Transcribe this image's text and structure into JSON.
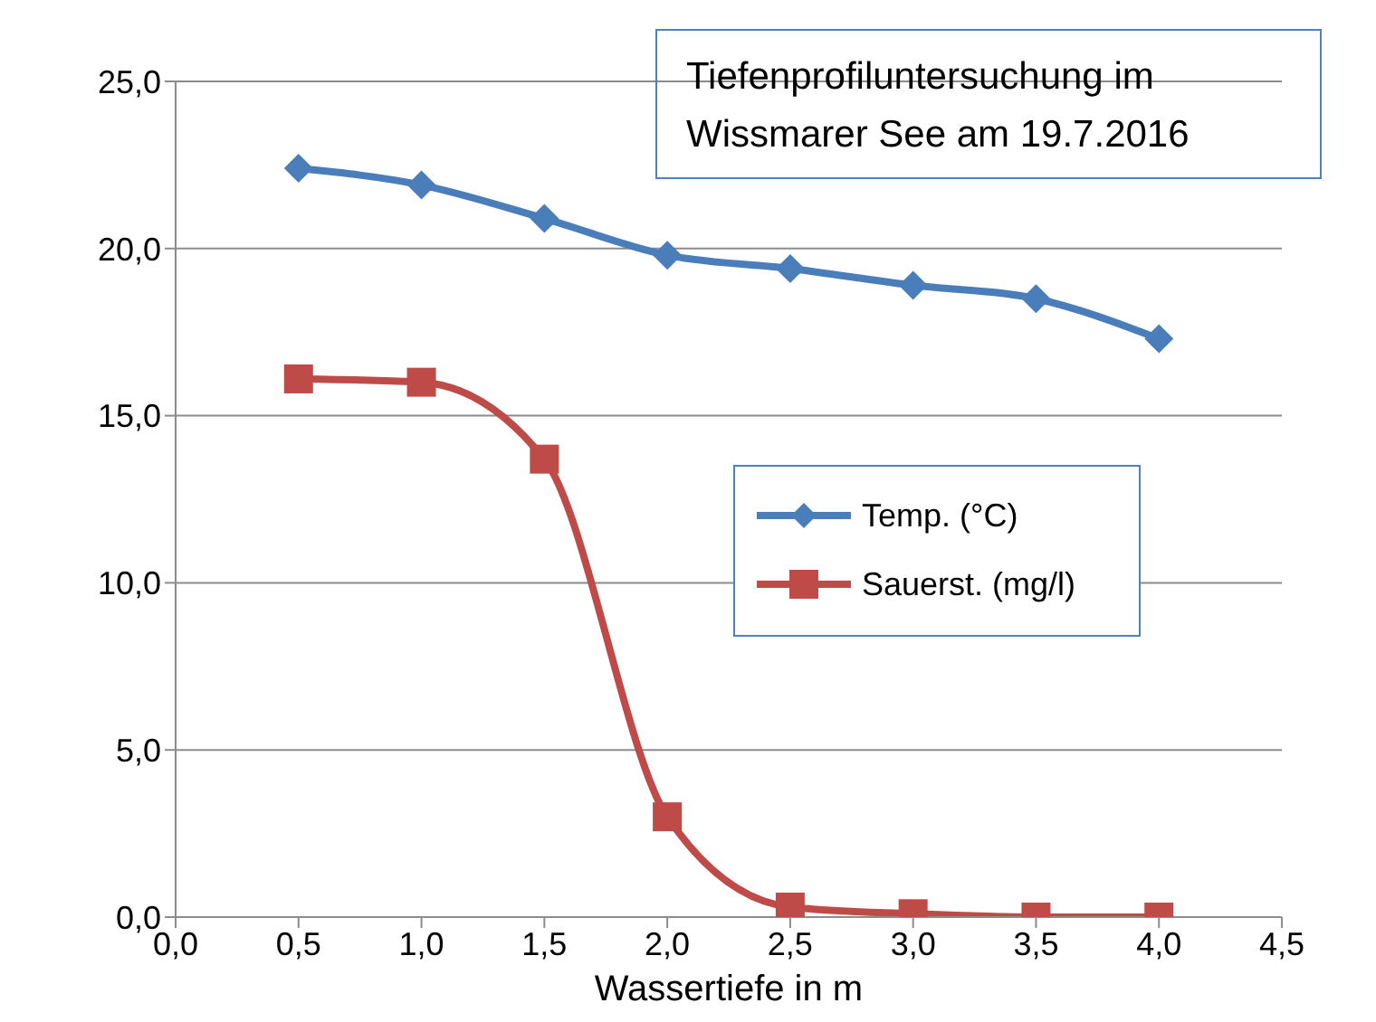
{
  "chart_data": {
    "type": "line",
    "title": "Tiefenprofiluntersuchung im Wissmarer See am 19.7.2016",
    "xlabel": "Wassertiefe in m",
    "x": [
      0.5,
      1.0,
      1.5,
      2.0,
      2.5,
      3.0,
      3.5,
      4.0
    ],
    "series": [
      {
        "name": "Temp. (°C)",
        "color": "#4a7ebb",
        "marker": "diamond",
        "values": [
          22.4,
          21.9,
          20.9,
          19.8,
          19.4,
          18.9,
          18.5,
          17.3
        ]
      },
      {
        "name": "Sauerst. (mg/l)",
        "color": "#be4b48",
        "marker": "square",
        "values": [
          16.1,
          16.0,
          13.7,
          3.0,
          0.3,
          0.1,
          0.0,
          0.0
        ]
      }
    ],
    "xlim": [
      0,
      4.5
    ],
    "xticks": [
      {
        "value": 0,
        "label": "0,0"
      },
      {
        "value": 0.5,
        "label": "0,5"
      },
      {
        "value": 1,
        "label": "1,0"
      },
      {
        "value": 1.5,
        "label": "1,5"
      },
      {
        "value": 2,
        "label": "2,0"
      },
      {
        "value": 2.5,
        "label": "2,5"
      },
      {
        "value": 3,
        "label": "3,0"
      },
      {
        "value": 3.5,
        "label": "3,5"
      },
      {
        "value": 4,
        "label": "4,0"
      },
      {
        "value": 4.5,
        "label": "4,5"
      }
    ],
    "ylim": [
      0,
      25
    ],
    "yticks": [
      {
        "value": 0,
        "label": "0,0"
      },
      {
        "value": 5,
        "label": "5,0"
      },
      {
        "value": 10,
        "label": "10,0"
      },
      {
        "value": 15,
        "label": "15,0"
      },
      {
        "value": 20,
        "label": "20,0"
      },
      {
        "value": 25,
        "label": "25,0"
      }
    ],
    "grid": "y",
    "legend": "right",
    "line_style": "solid"
  }
}
